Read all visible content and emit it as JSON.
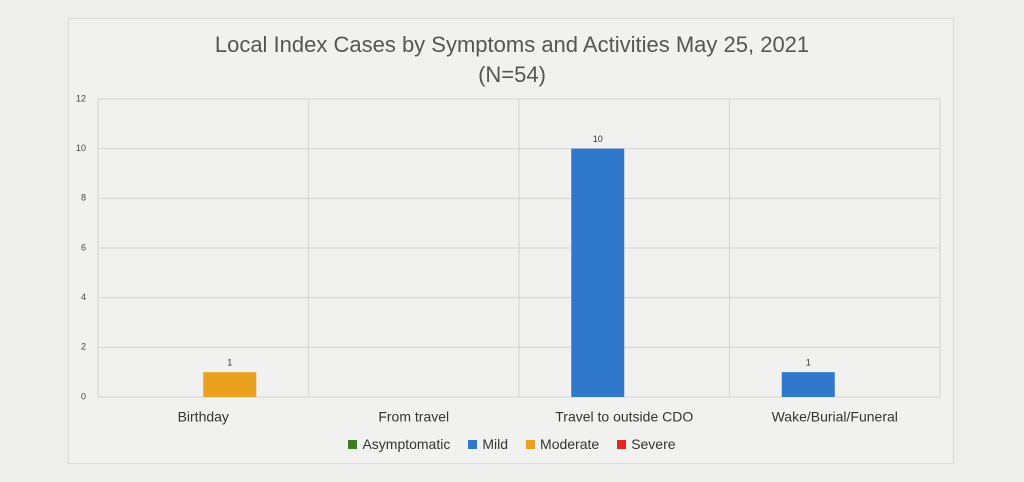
{
  "chart_data": {
    "type": "bar",
    "title": "Local Index Cases by Symptoms and Activities May 25, 2021 (N=54)",
    "categories": [
      "Birthday",
      "From travel",
      "Travel to outside CDO",
      "Wake/Burial/Funeral"
    ],
    "series": [
      {
        "name": "Asymptomatic",
        "color": "#3b7d23",
        "values": [
          null,
          null,
          null,
          null
        ]
      },
      {
        "name": "Mild",
        "color": "#2f78cc",
        "values": [
          null,
          null,
          10,
          1
        ]
      },
      {
        "name": "Moderate",
        "color": "#eaa21e",
        "values": [
          1,
          null,
          null,
          null
        ]
      },
      {
        "name": "Severe",
        "color": "#e2291f",
        "values": [
          null,
          null,
          null,
          null
        ]
      }
    ],
    "ylim": [
      0,
      12
    ],
    "yticks": [
      0,
      2,
      4,
      6,
      8,
      10,
      12
    ],
    "grid": true,
    "legend": "bottom"
  }
}
